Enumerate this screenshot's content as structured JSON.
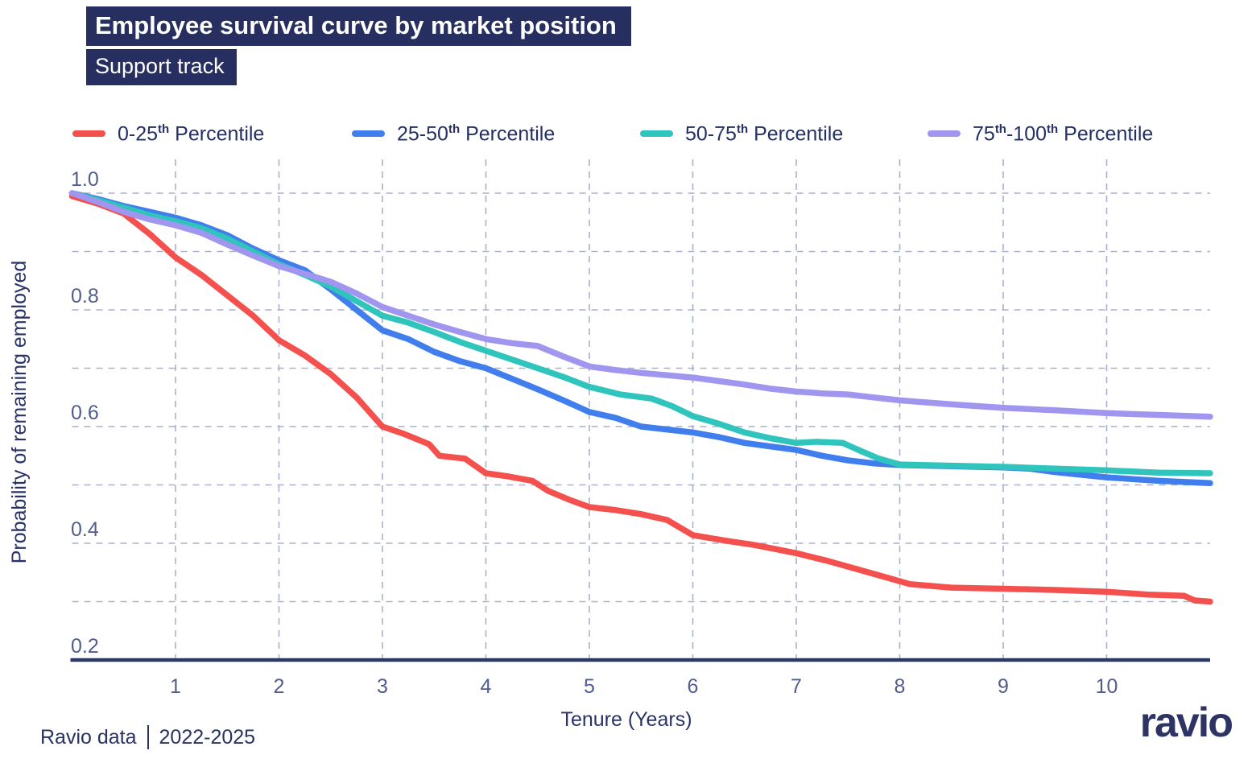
{
  "title": "Employee survival curve by market position",
  "subtitle": "Support track",
  "footer": {
    "source": "Ravio data",
    "period": "2022-2025"
  },
  "logo_text": "ravio",
  "colors": {
    "background": "#FFFFFF",
    "title_bar_bg": "#262F5F",
    "title_text": "#FFFFFF",
    "axis": "#2B3765",
    "grid": "#A9B1CB",
    "tick_label": "#525C8E",
    "axis_title": "#2A3367",
    "legend_text": "#242F63",
    "footer_text": "#2A3263",
    "logo": "#2D3465",
    "series_red": "#F4514E",
    "series_blue": "#3F7EEC",
    "series_teal": "#2FC4BC",
    "series_purple": "#A096F0"
  },
  "legend": {
    "items": [
      {
        "label": "0-25th Percentile",
        "color": "#F4514E",
        "parts": [
          {
            "text": "0-25"
          },
          {
            "text": "th",
            "sup": true
          },
          {
            "text": " Percentile"
          }
        ]
      },
      {
        "label": "25-50th Percentile",
        "color": "#3F7EEC",
        "parts": [
          {
            "text": "25-50"
          },
          {
            "text": "th",
            "sup": true
          },
          {
            "text": " Percentile"
          }
        ]
      },
      {
        "label": "50-75th Percentile",
        "color": "#2FC4BC",
        "parts": [
          {
            "text": "50-75"
          },
          {
            "text": "th",
            "sup": true
          },
          {
            "text": " Percentile"
          }
        ]
      },
      {
        "label": "75th-100th Percentile",
        "color": "#A096F0",
        "parts": [
          {
            "text": "75"
          },
          {
            "text": "th",
            "sup": true
          },
          {
            "text": "-100"
          },
          {
            "text": "th",
            "sup": true
          },
          {
            "text": " Percentile"
          }
        ]
      }
    ]
  },
  "chart_data": {
    "type": "line",
    "title": "Employee survival curve by market position",
    "subtitle": "Support track",
    "xlabel": "Tenure (Years)",
    "ylabel": "Probability of remaining employed",
    "xlim": [
      0,
      11
    ],
    "ylim": [
      0.2,
      1.0
    ],
    "grid": "dashed",
    "legend_position": "top",
    "x_ticks": [
      1,
      2,
      3,
      4,
      5,
      6,
      7,
      8,
      9,
      10
    ],
    "y_ticks": [
      {
        "label": "1.0",
        "v": 1.0
      },
      {
        "label": "0.8",
        "v": 0.8
      },
      {
        "label": "0.6",
        "v": 0.6
      },
      {
        "label": "0.4",
        "v": 0.4
      },
      {
        "label": "0.2",
        "v": 0.2
      }
    ],
    "y_gridlines": [
      1.0,
      0.9,
      0.8,
      0.7,
      0.6,
      0.5,
      0.4,
      0.3
    ],
    "series": [
      {
        "name": "0-25th Percentile",
        "color": "#F4514E",
        "x": [
          0,
          0.25,
          0.5,
          0.75,
          1,
          1.25,
          1.5,
          1.75,
          2,
          2.25,
          2.5,
          2.75,
          3,
          3.2,
          3.45,
          3.55,
          3.8,
          4,
          4.2,
          4.45,
          4.6,
          4.8,
          5,
          5.25,
          5.5,
          5.75,
          6,
          6.3,
          6.6,
          7,
          7.3,
          7.6,
          7.9,
          8.1,
          8.5,
          9,
          9.5,
          10,
          10.4,
          10.75,
          10.85,
          11
        ],
        "y": [
          0.995,
          0.982,
          0.965,
          0.93,
          0.89,
          0.86,
          0.825,
          0.79,
          0.748,
          0.722,
          0.69,
          0.65,
          0.6,
          0.588,
          0.57,
          0.55,
          0.545,
          0.52,
          0.515,
          0.507,
          0.49,
          0.475,
          0.462,
          0.457,
          0.45,
          0.44,
          0.414,
          0.405,
          0.397,
          0.383,
          0.37,
          0.355,
          0.34,
          0.33,
          0.324,
          0.322,
          0.32,
          0.317,
          0.312,
          0.31,
          0.302,
          0.3
        ]
      },
      {
        "name": "25-50th Percentile",
        "color": "#3F7EEC",
        "x": [
          0,
          0.25,
          0.5,
          0.75,
          1,
          1.25,
          1.5,
          1.75,
          2,
          2.25,
          2.5,
          2.75,
          3,
          3.25,
          3.5,
          3.75,
          4,
          4.25,
          4.5,
          4.75,
          5,
          5.25,
          5.5,
          5.75,
          6,
          6.25,
          6.5,
          6.75,
          7,
          7.25,
          7.5,
          7.75,
          8,
          8.5,
          9,
          9.25,
          9.5,
          10,
          10.5,
          11
        ],
        "y": [
          1.0,
          0.99,
          0.978,
          0.968,
          0.958,
          0.945,
          0.928,
          0.905,
          0.885,
          0.868,
          0.835,
          0.8,
          0.765,
          0.75,
          0.728,
          0.712,
          0.7,
          0.682,
          0.664,
          0.645,
          0.625,
          0.615,
          0.6,
          0.595,
          0.59,
          0.582,
          0.572,
          0.566,
          0.56,
          0.55,
          0.542,
          0.537,
          0.534,
          0.532,
          0.53,
          0.528,
          0.522,
          0.513,
          0.507,
          0.503
        ]
      },
      {
        "name": "50-75th Percentile",
        "color": "#2FC4BC",
        "x": [
          0,
          0.25,
          0.5,
          0.75,
          1,
          1.25,
          1.5,
          1.75,
          2,
          2.25,
          2.5,
          2.75,
          3,
          3.25,
          3.5,
          3.75,
          4,
          4.25,
          4.5,
          4.75,
          5,
          5.3,
          5.6,
          5.8,
          6,
          6.25,
          6.5,
          6.75,
          7,
          7.2,
          7.45,
          7.6,
          7.8,
          8,
          8.5,
          9,
          9.5,
          10,
          10.5,
          11
        ],
        "y": [
          1.0,
          0.988,
          0.975,
          0.962,
          0.952,
          0.94,
          0.922,
          0.9,
          0.878,
          0.86,
          0.84,
          0.815,
          0.79,
          0.778,
          0.762,
          0.745,
          0.73,
          0.715,
          0.7,
          0.685,
          0.668,
          0.655,
          0.648,
          0.635,
          0.618,
          0.605,
          0.59,
          0.58,
          0.572,
          0.574,
          0.572,
          0.56,
          0.545,
          0.535,
          0.533,
          0.531,
          0.528,
          0.525,
          0.521,
          0.52
        ]
      },
      {
        "name": "75th-100th Percentile",
        "color": "#A096F0",
        "x": [
          0,
          0.25,
          0.5,
          0.75,
          1,
          1.25,
          1.5,
          1.75,
          2,
          2.25,
          2.5,
          2.75,
          3,
          3.25,
          3.5,
          3.75,
          4,
          4.25,
          4.5,
          4.75,
          5,
          5.25,
          5.5,
          5.75,
          6,
          6.25,
          6.5,
          6.75,
          7,
          7.25,
          7.5,
          7.75,
          8,
          8.5,
          9,
          9.5,
          10,
          10.5,
          11
        ],
        "y": [
          1.0,
          0.985,
          0.968,
          0.955,
          0.945,
          0.932,
          0.912,
          0.893,
          0.875,
          0.862,
          0.848,
          0.828,
          0.805,
          0.79,
          0.775,
          0.762,
          0.75,
          0.743,
          0.738,
          0.72,
          0.703,
          0.697,
          0.692,
          0.688,
          0.684,
          0.678,
          0.672,
          0.665,
          0.66,
          0.657,
          0.655,
          0.65,
          0.645,
          0.638,
          0.632,
          0.628,
          0.623,
          0.62,
          0.617
        ]
      }
    ]
  }
}
